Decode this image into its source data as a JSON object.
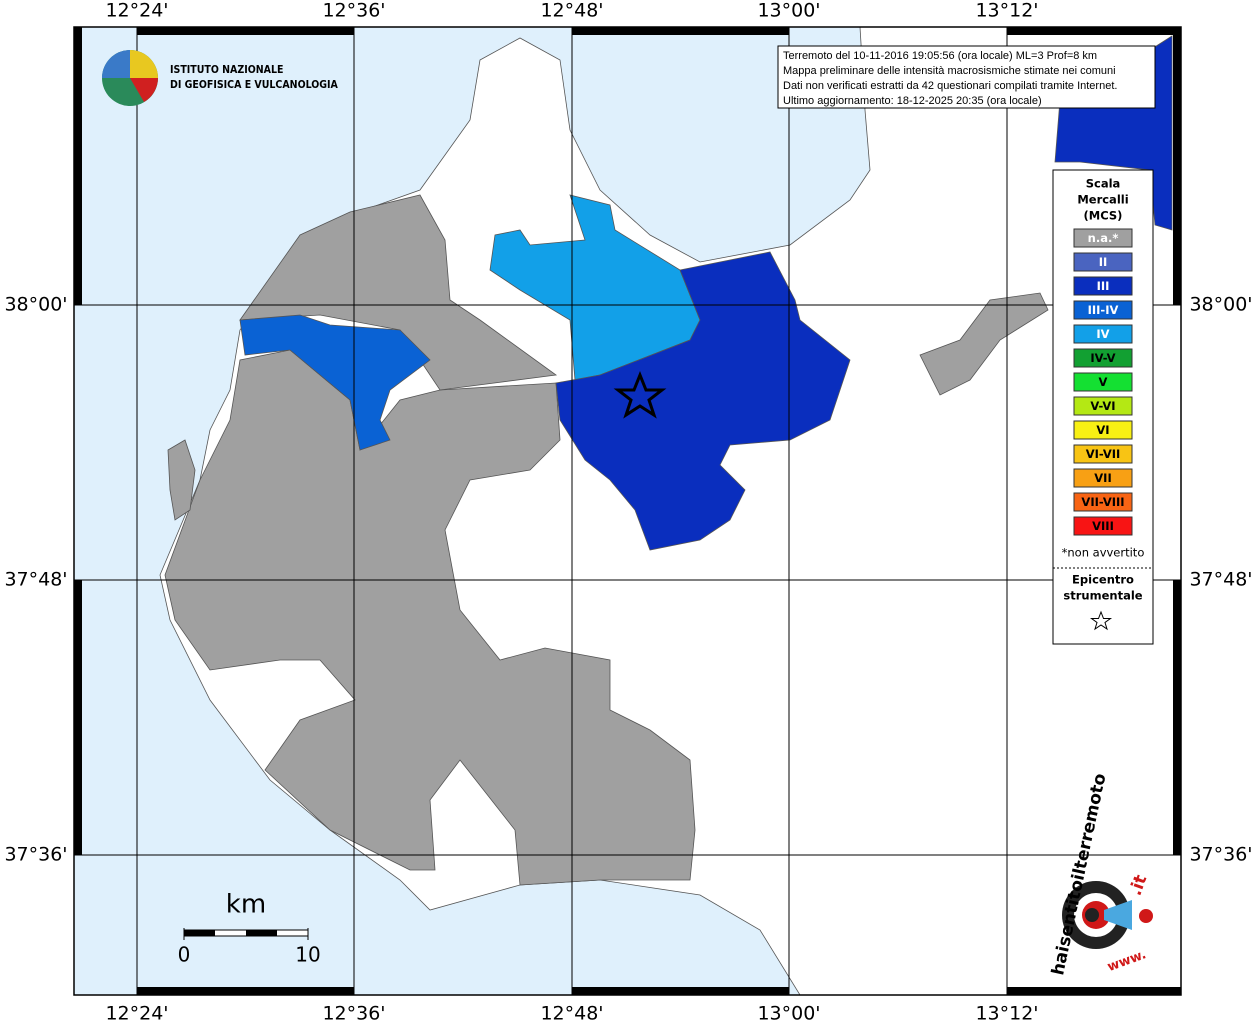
{
  "map": {
    "lon_labels": [
      "12°24'",
      "12°36'",
      "12°48'",
      "13°00'",
      "13°12'"
    ],
    "lat_labels": [
      "38°00'",
      "37°48'",
      "37°36'"
    ],
    "institute": [
      "ISTITUTO NAZIONALE",
      "DI GEOFISICA E VULCANOLOGIA"
    ],
    "info": [
      "Terremoto del 10-11-2016 19:05:56 (ora locale) ML=3 Prof=8 km",
      "Mappa preliminare delle intensità macrosismiche stimate nei comuni",
      "Dati non verificati estratti da 42 questionari compilati tramite Internet.",
      "Ultimo aggiornamento: 18-12-2025 20:35 (ora locale)"
    ],
    "legend": {
      "title": [
        "Scala",
        "Mercalli",
        "(MCS)"
      ],
      "classes": [
        {
          "label": "n.a.*",
          "color": "#a0a0a0"
        },
        {
          "label": "II",
          "color": "#4a64c0"
        },
        {
          "label": "III",
          "color": "#0a2ebe"
        },
        {
          "label": "III-IV",
          "color": "#0a62d4"
        },
        {
          "label": "IV",
          "color": "#12a0e8"
        },
        {
          "label": "IV-V",
          "color": "#12a032"
        },
        {
          "label": "V",
          "color": "#14e032"
        },
        {
          "label": "V-VI",
          "color": "#b4e814"
        },
        {
          "label": "VI",
          "color": "#f8f014"
        },
        {
          "label": "VI-VII",
          "color": "#f8c414"
        },
        {
          "label": "VII",
          "color": "#f8a014"
        },
        {
          "label": "VII-VIII",
          "color": "#f86414"
        },
        {
          "label": "VIII",
          "color": "#f81414"
        }
      ],
      "note": "*non avvertito",
      "epicenter": [
        "Epicentro",
        "strumentale"
      ]
    },
    "scale": {
      "unit": "km",
      "labels": [
        0,
        10
      ]
    },
    "badge": [
      "haisentitoilterremoto",
      ".it",
      "www."
    ]
  }
}
